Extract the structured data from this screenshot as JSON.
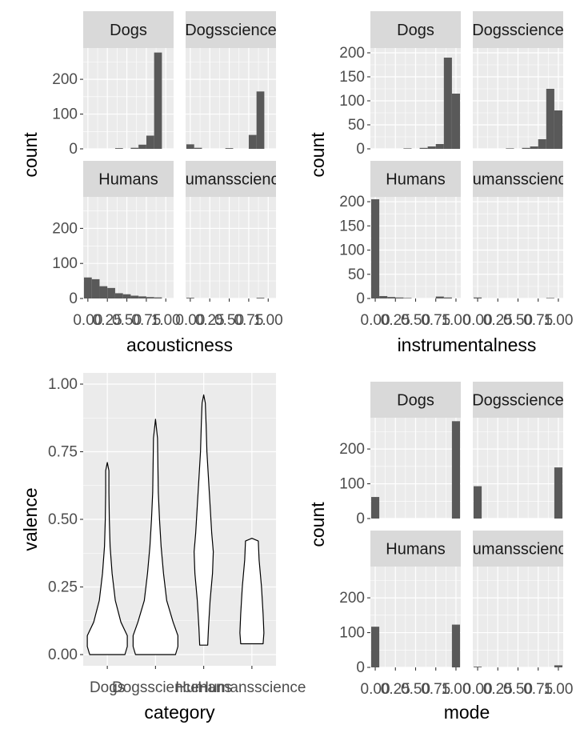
{
  "chart_data": [
    {
      "type": "bar",
      "subtype": "faceted-histogram",
      "xlabel": "acousticness",
      "ylabel": "count",
      "ylim": [
        0,
        290
      ],
      "y_ticks": [
        "0",
        "100",
        "200"
      ],
      "x_tick_labels": [
        "0.00",
        "0.25",
        "0.50",
        "0.75",
        "1.00"
      ],
      "bin_centers": [
        0.0,
        0.1,
        0.2,
        0.3,
        0.4,
        0.5,
        0.6,
        0.7,
        0.8,
        0.9,
        1.0
      ],
      "panels": [
        {
          "strip": "Dogs",
          "values": [
            0,
            0,
            0,
            0,
            2,
            0,
            3,
            12,
            38,
            277,
            0
          ]
        },
        {
          "strip": "Dogsscience",
          "values": [
            13,
            3,
            0,
            0,
            0,
            2,
            0,
            0,
            40,
            165,
            0
          ]
        },
        {
          "strip": "Humans",
          "values": [
            60,
            55,
            35,
            30,
            15,
            12,
            8,
            6,
            4,
            3,
            0
          ]
        },
        {
          "strip": "Humansscience",
          "values": [
            2,
            0,
            0,
            0,
            0,
            0,
            0,
            0,
            0,
            2,
            0
          ]
        }
      ]
    },
    {
      "type": "bar",
      "subtype": "faceted-histogram",
      "xlabel": "instrumentalness",
      "ylabel": "count",
      "ylim": [
        0,
        210
      ],
      "y_ticks": [
        "0",
        "50",
        "100",
        "150",
        "200"
      ],
      "x_tick_labels": [
        "0.00",
        "0.25",
        "0.50",
        "0.75",
        "1.00"
      ],
      "bin_centers": [
        0.0,
        0.1,
        0.2,
        0.3,
        0.4,
        0.5,
        0.6,
        0.7,
        0.8,
        0.9,
        1.0
      ],
      "panels": [
        {
          "strip": "Dogs",
          "values": [
            0,
            0,
            0,
            0,
            1,
            0,
            2,
            5,
            10,
            190,
            115
          ]
        },
        {
          "strip": "Dogsscience",
          "values": [
            0,
            0,
            0,
            0,
            1,
            0,
            2,
            5,
            20,
            125,
            80
          ]
        },
        {
          "strip": "Humans",
          "values": [
            205,
            5,
            3,
            2,
            1,
            0,
            0,
            0,
            4,
            2,
            0
          ]
        },
        {
          "strip": "Humansscience",
          "values": [
            2,
            0,
            0,
            0,
            0,
            0,
            0,
            0,
            0,
            1,
            0
          ]
        }
      ]
    },
    {
      "type": "violin",
      "xlabel": "category",
      "ylabel": "valence",
      "ylim": [
        0,
        1
      ],
      "y_ticks": [
        "0.00",
        "0.25",
        "0.50",
        "0.75",
        "1.00"
      ],
      "categories": [
        "Dogs",
        "Dogsscience",
        "Humans",
        "Humansscience"
      ],
      "ranges": [
        [
          0.0,
          0.71
        ],
        [
          0.0,
          0.87
        ],
        [
          0.035,
          0.96
        ],
        [
          0.04,
          0.43
        ]
      ]
    },
    {
      "type": "bar",
      "subtype": "faceted-histogram",
      "xlabel": "mode",
      "ylabel": "count",
      "ylim": [
        0,
        290
      ],
      "y_ticks": [
        "0",
        "100",
        "200"
      ],
      "x_tick_labels": [
        "0.00",
        "0.25",
        "0.50",
        "0.75",
        "1.00"
      ],
      "bin_centers": [
        0.0,
        0.1,
        0.2,
        0.3,
        0.4,
        0.5,
        0.6,
        0.7,
        0.8,
        0.9,
        1.0
      ],
      "panels": [
        {
          "strip": "Dogs",
          "values": [
            62,
            0,
            0,
            0,
            0,
            0,
            0,
            0,
            0,
            0,
            280
          ]
        },
        {
          "strip": "Dogsscience",
          "values": [
            93,
            0,
            0,
            0,
            0,
            0,
            0,
            0,
            0,
            0,
            147
          ]
        },
        {
          "strip": "Humans",
          "values": [
            117,
            0,
            0,
            0,
            0,
            0,
            0,
            0,
            0,
            0,
            123
          ]
        },
        {
          "strip": "Humansscience",
          "values": [
            2,
            0,
            0,
            0,
            0,
            0,
            0,
            0,
            0,
            0,
            6
          ]
        }
      ]
    }
  ],
  "colors": {
    "panel_bg": "#ebebeb",
    "grid": "#ffffff",
    "strip_bg": "#d9d9d9",
    "bar": "#595959",
    "tick_text": "#4d4d4d",
    "axis_title": "#000000",
    "violin_fill": "#ffffff",
    "violin_line": "#000000"
  }
}
